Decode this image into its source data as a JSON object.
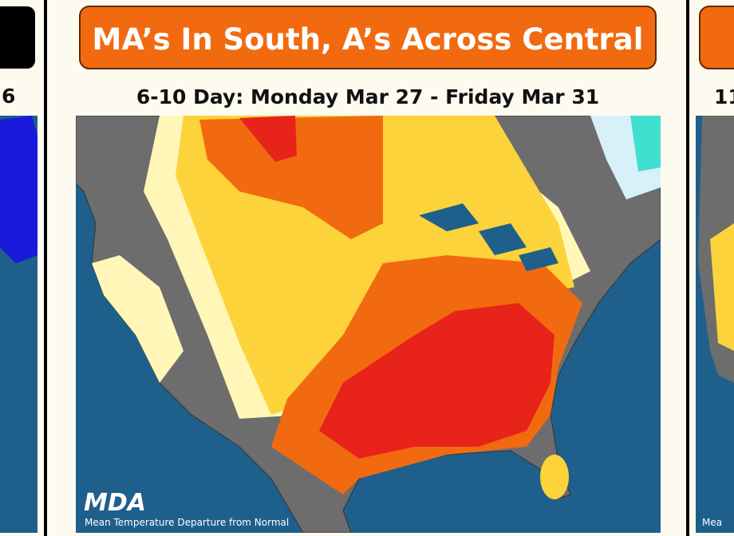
{
  "left_panel": {
    "subtitle_fragment": "6"
  },
  "center_panel": {
    "title": "MA’s In South, A’s Across Central",
    "subtitle": "6-10 Day: Monday Mar 27 - Friday Mar 31",
    "logo": "MDA",
    "caption": "Mean Temperature Departure from Normal"
  },
  "right_panel": {
    "subtitle_fragment": "11",
    "caption_fragment": "Mea"
  }
}
